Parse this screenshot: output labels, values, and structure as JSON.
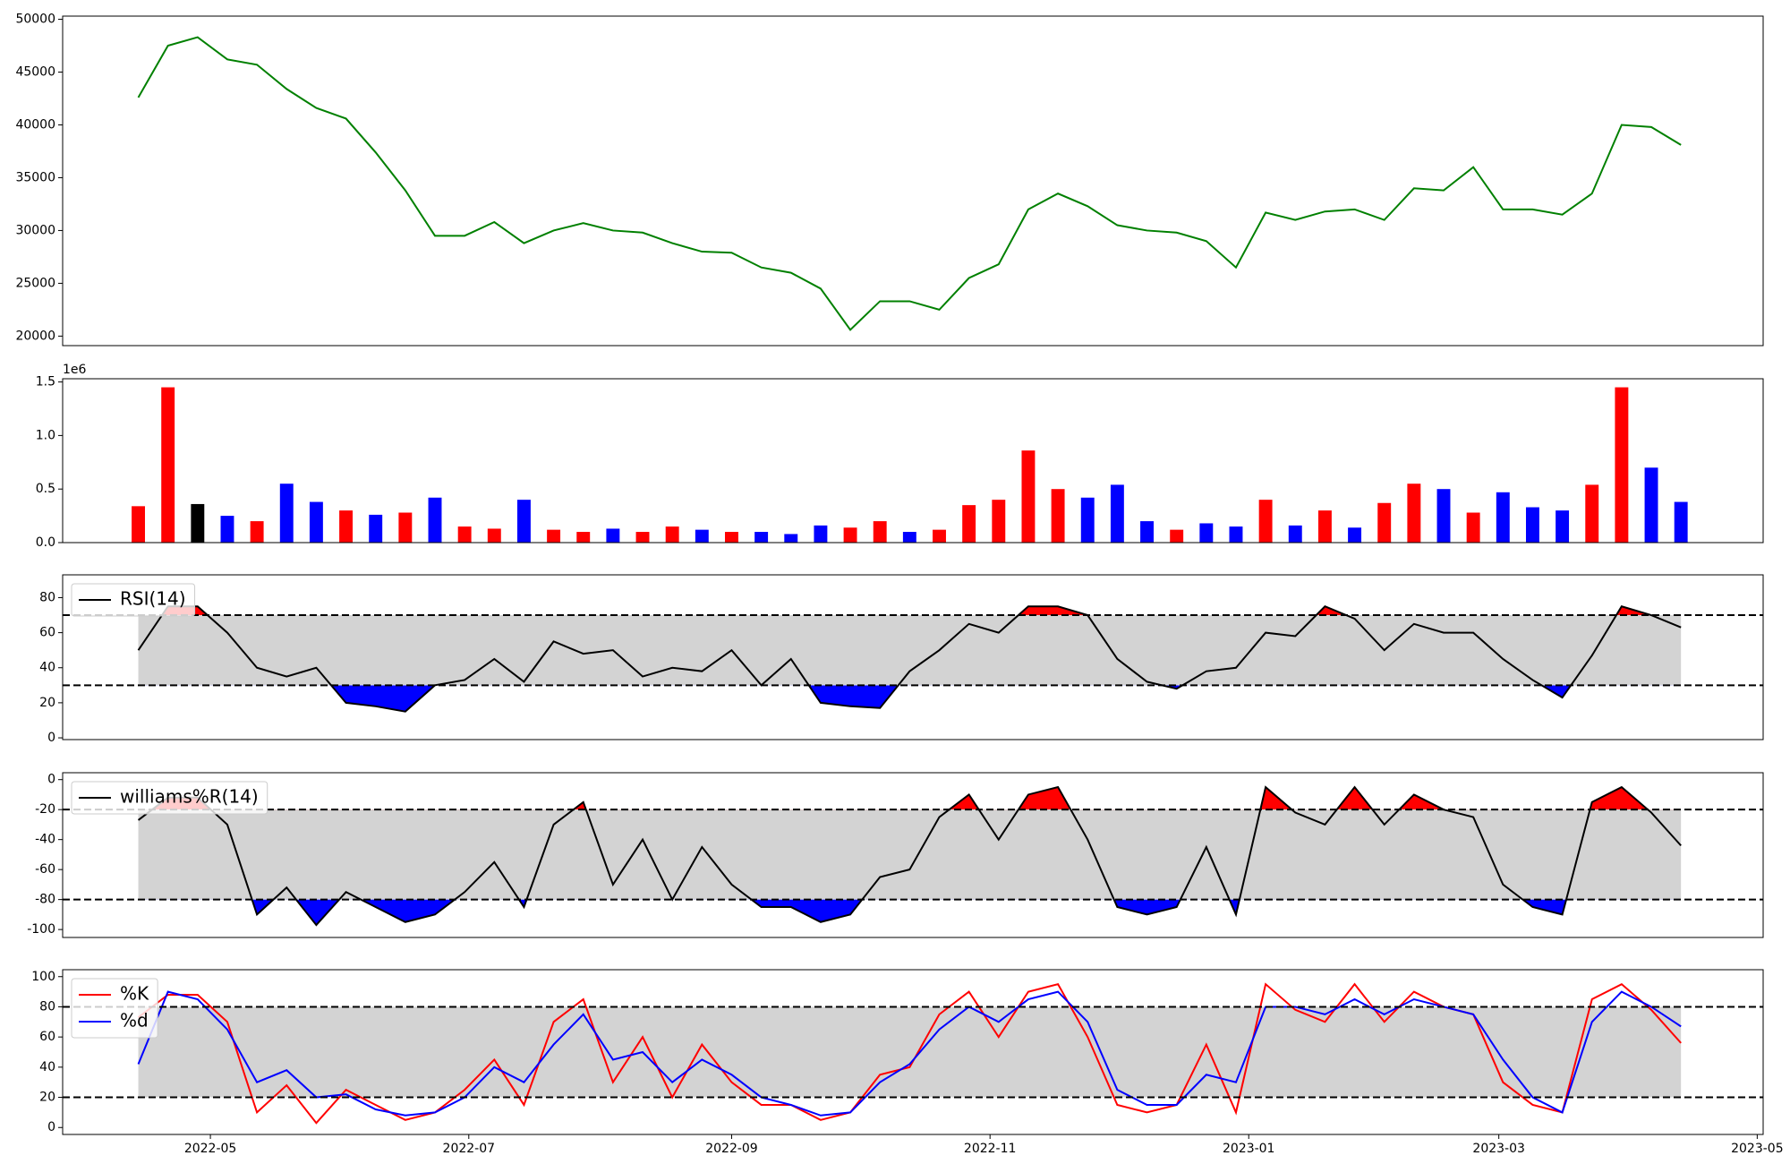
{
  "chart_data": [
    {
      "type": "line",
      "xlim": [
        -2.55,
        54.77
      ],
      "ylim": [
        19100,
        50300
      ],
      "yticks": [
        20000,
        25000,
        30000,
        35000,
        40000,
        45000,
        50000
      ],
      "series": [
        {
          "color": "green",
          "values": [
            42600,
            47500,
            48300,
            46200,
            45700,
            43400,
            41600,
            40600,
            37400,
            33800,
            29500,
            29500,
            30800,
            28800,
            30000,
            30700,
            30000,
            29800,
            28800,
            28000,
            27900,
            26500,
            26000,
            24500,
            20600,
            23300,
            23300,
            22500,
            25500,
            26800,
            32000,
            33500,
            32300,
            30500,
            30000,
            29800,
            29000,
            26500,
            31700,
            31000,
            31800,
            32000,
            31000,
            34000,
            33800,
            36000,
            32000,
            32000,
            31500,
            33500,
            40000,
            39800,
            38100
          ]
        }
      ]
    },
    {
      "type": "bar",
      "xlim": [
        -2.55,
        54.77
      ],
      "ylim": [
        0,
        1530000
      ],
      "offset_label": "1e6",
      "yticks": [
        {
          "value": 0,
          "label": "0.0"
        },
        {
          "value": 500000,
          "label": "0.5"
        },
        {
          "value": 1000000,
          "label": "1.0"
        },
        {
          "value": 1500000,
          "label": "1.5"
        }
      ],
      "series": [
        {
          "values": [
            340000,
            1450000,
            360000,
            250000,
            200000,
            550000,
            380000,
            300000,
            260000,
            280000,
            420000,
            150000,
            130000,
            400000,
            120000,
            100000,
            130000,
            100000,
            150000,
            120000,
            100000,
            100000,
            80000,
            160000,
            140000,
            200000,
            100000,
            120000,
            350000,
            400000,
            860000,
            500000,
            420000,
            540000,
            200000,
            120000,
            180000,
            150000,
            400000,
            160000,
            300000,
            140000,
            370000,
            550000,
            500000,
            280000,
            470000,
            330000,
            300000,
            540000,
            1450000,
            700000,
            380000
          ],
          "colors": [
            "red",
            "red",
            "black",
            "blue",
            "red",
            "blue",
            "blue",
            "red",
            "blue",
            "red",
            "blue",
            "red",
            "red",
            "blue",
            "red",
            "red",
            "blue",
            "red",
            "red",
            "blue",
            "red",
            "blue",
            "blue",
            "blue",
            "red",
            "red",
            "blue",
            "red",
            "red",
            "red",
            "red",
            "red",
            "blue",
            "blue",
            "blue",
            "red",
            "blue",
            "blue",
            "red",
            "blue",
            "red",
            "blue",
            "red",
            "red",
            "blue",
            "red",
            "blue",
            "blue",
            "blue",
            "red",
            "red",
            "blue",
            "blue"
          ]
        }
      ]
    },
    {
      "type": "line",
      "xlim": [
        -2.55,
        54.77
      ],
      "ylim": [
        -1,
        93
      ],
      "yticks": [
        0,
        20,
        40,
        60,
        80
      ],
      "hlines": [
        30,
        70
      ],
      "band_color": "lightgray",
      "fill_above_color": "red",
      "fill_below_color": "blue",
      "legend": "upper left",
      "series": [
        {
          "name": "RSI(14)",
          "color": "black",
          "values": [
            50,
            75,
            75,
            60,
            40,
            35,
            40,
            20,
            18,
            15,
            30,
            33,
            45,
            32,
            55,
            48,
            50,
            35,
            40,
            38,
            50,
            30,
            45,
            20,
            18,
            17,
            38,
            50,
            65,
            60,
            75,
            75,
            70,
            45,
            32,
            28,
            38,
            40,
            60,
            58,
            75,
            68,
            50,
            65,
            60,
            60,
            45,
            33,
            23,
            47,
            75,
            70,
            63
          ]
        }
      ]
    },
    {
      "type": "line",
      "xlim": [
        -2.55,
        54.77
      ],
      "ylim": [
        -105.3,
        4.6
      ],
      "yticks": [
        -100,
        -80,
        -60,
        -40,
        -20,
        0
      ],
      "hlines": [
        -80,
        -20
      ],
      "band_color": "lightgray",
      "fill_above_color": "red",
      "fill_below_color": "blue",
      "legend": "upper left",
      "series": [
        {
          "name": "williams%R(14)",
          "color": "black",
          "values": [
            -27,
            -12,
            -12,
            -30,
            -90,
            -72,
            -97,
            -75,
            -85,
            -95,
            -90,
            -75,
            -55,
            -85,
            -30,
            -15,
            -70,
            -40,
            -80,
            -45,
            -70,
            -85,
            -85,
            -95,
            -90,
            -65,
            -60,
            -25,
            -10,
            -40,
            -10,
            -5,
            -40,
            -85,
            -90,
            -85,
            -45,
            -90,
            -5,
            -22,
            -30,
            -5,
            -30,
            -10,
            -20,
            -25,
            -70,
            -85,
            -90,
            -15,
            -5,
            -22,
            -44
          ]
        }
      ]
    },
    {
      "type": "line",
      "xlim": [
        -2.55,
        54.77
      ],
      "ylim": [
        -4.6,
        104.6
      ],
      "yticks": [
        0,
        20,
        40,
        60,
        80,
        100
      ],
      "hlines": [
        20,
        80
      ],
      "band_color": "lightgray",
      "legend": "upper left",
      "xticks": [
        {
          "value": 2.43,
          "label": "2022-05"
        },
        {
          "value": 11.14,
          "label": "2022-07"
        },
        {
          "value": 20,
          "label": "2022-09"
        },
        {
          "value": 28.71,
          "label": "2022-11"
        },
        {
          "value": 37.43,
          "label": "2023-01"
        },
        {
          "value": 45.86,
          "label": "2023-03"
        },
        {
          "value": 54.57,
          "label": "2023-05"
        }
      ],
      "series": [
        {
          "name": "%K",
          "color": "red",
          "values": [
            73,
            88,
            88,
            70,
            10,
            28,
            3,
            25,
            15,
            5,
            10,
            25,
            45,
            15,
            70,
            85,
            30,
            60,
            20,
            55,
            30,
            15,
            15,
            5,
            10,
            35,
            40,
            75,
            90,
            60,
            90,
            95,
            60,
            15,
            10,
            15,
            55,
            10,
            95,
            78,
            70,
            95,
            70,
            90,
            80,
            75,
            30,
            15,
            10,
            85,
            95,
            78,
            56
          ]
        },
        {
          "name": "%d",
          "color": "blue",
          "values": [
            42,
            90,
            85,
            65,
            30,
            38,
            20,
            22,
            12,
            8,
            10,
            20,
            40,
            30,
            55,
            75,
            45,
            50,
            30,
            45,
            35,
            20,
            15,
            8,
            10,
            30,
            42,
            65,
            80,
            70,
            85,
            90,
            70,
            25,
            15,
            15,
            35,
            30,
            80,
            80,
            75,
            85,
            75,
            85,
            80,
            75,
            45,
            20,
            10,
            70,
            90,
            80,
            67
          ]
        }
      ]
    }
  ]
}
